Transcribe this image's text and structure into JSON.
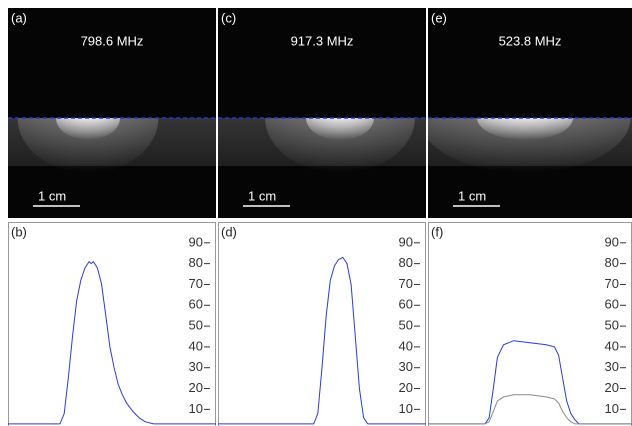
{
  "images": [
    {
      "label": "(a)",
      "frequency": "798.6 MHz",
      "scale_bar": "1 cm"
    },
    {
      "label": "(c)",
      "frequency": "917.3 MHz",
      "scale_bar": "1 cm"
    },
    {
      "label": "(e)",
      "frequency": "523.8 MHz",
      "scale_bar": "1 cm"
    }
  ],
  "chart_data": [
    {
      "type": "line",
      "label": "(b)",
      "x": [
        0,
        10,
        20,
        25,
        27,
        29,
        31,
        33,
        35,
        37,
        39,
        40,
        41,
        43,
        45,
        47,
        49,
        51,
        53,
        55,
        57,
        60,
        63,
        66,
        70,
        80,
        90,
        100
      ],
      "series": [
        {
          "color": "#2a3bd6",
          "values": [
            3,
            3,
            3,
            3,
            8,
            25,
            45,
            62,
            72,
            78,
            81,
            80,
            81,
            78,
            70,
            55,
            40,
            30,
            22,
            17,
            13,
            9,
            6,
            4,
            3,
            3,
            3,
            3
          ]
        }
      ],
      "xlim": [
        0,
        100
      ],
      "ylim": [
        2,
        100
      ],
      "yticks": [
        10,
        20,
        30,
        40,
        50,
        60,
        70,
        80,
        90
      ]
    },
    {
      "type": "line",
      "label": "(d)",
      "x": [
        0,
        20,
        40,
        46,
        48,
        50,
        52,
        54,
        56,
        58,
        60,
        62,
        64,
        66,
        68,
        70,
        72,
        80,
        100
      ],
      "series": [
        {
          "color": "#2a3bd6",
          "values": [
            3,
            3,
            3,
            3,
            8,
            30,
            55,
            72,
            79,
            82,
            83,
            80,
            70,
            45,
            20,
            6,
            3,
            3,
            3
          ]
        }
      ],
      "xlim": [
        0,
        100
      ],
      "ylim": [
        2,
        100
      ],
      "yticks": [
        10,
        20,
        30,
        40,
        50,
        60,
        70,
        80,
        90
      ]
    },
    {
      "type": "line",
      "label": "(f)",
      "x": [
        0,
        20,
        28,
        30,
        32,
        34,
        37,
        42,
        50,
        58,
        62,
        64,
        66,
        68,
        70,
        72,
        74,
        80,
        100
      ],
      "series": [
        {
          "color": "#2a3bd6",
          "values": [
            3,
            3,
            3,
            6,
            20,
            35,
            41,
            43,
            42,
            41,
            40,
            36,
            25,
            14,
            8,
            5,
            3,
            3,
            3
          ]
        },
        {
          "color": "#8a8a8a",
          "values": [
            3,
            3,
            3,
            4,
            9,
            14,
            16,
            17,
            17,
            16,
            15,
            13,
            9,
            6,
            4,
            3,
            3,
            3,
            3
          ]
        }
      ],
      "xlim": [
        0,
        100
      ],
      "ylim": [
        2,
        100
      ],
      "yticks": [
        10,
        20,
        30,
        40,
        50,
        60,
        70,
        80,
        90
      ]
    }
  ]
}
